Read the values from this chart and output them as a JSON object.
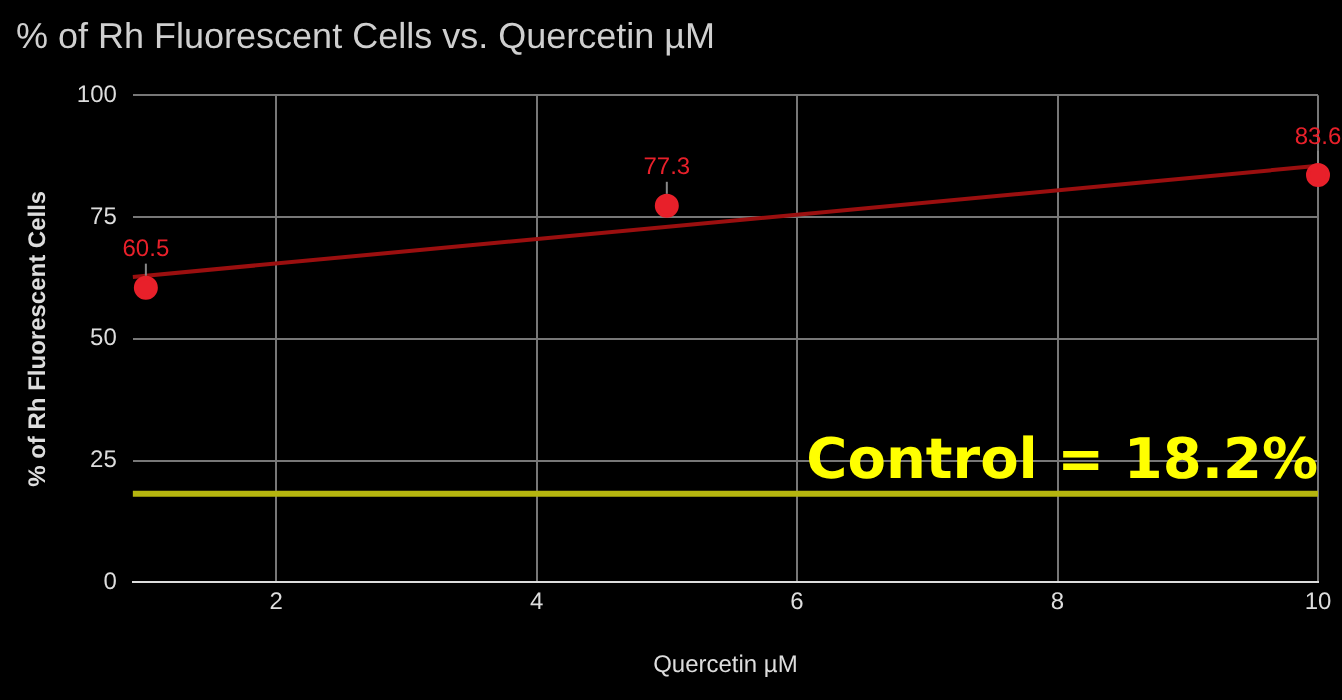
{
  "chart_data": {
    "type": "scatter",
    "title": "% of Rh Fluorescent Cells vs. Quercetin µM",
    "xlabel": "Quercetin µM",
    "ylabel": "% of Rh Fluorescent Cells",
    "x": [
      1,
      5,
      10
    ],
    "series": [
      {
        "color": "#e8202a",
        "values": [
          60.5,
          77.3,
          83.6
        ],
        "marker": "circle",
        "data_labels": true
      },
      {
        "type": "line",
        "color": "#9b0f0f",
        "x": [
          0.9,
          10
        ],
        "values": [
          62.7,
          85.5
        ],
        "marker": "none"
      }
    ],
    "xlim": [
      0.9,
      10
    ],
    "xticks": [
      2,
      4,
      6,
      8,
      10
    ],
    "ylim": [
      0,
      100
    ],
    "yticks": [
      0,
      25,
      50,
      75,
      100
    ],
    "grid": true,
    "legend": false,
    "ref_lines": [
      {
        "axis": "y",
        "value": 18.2,
        "label": "Control = 18.2%",
        "color": "#b5b50f"
      }
    ]
  }
}
